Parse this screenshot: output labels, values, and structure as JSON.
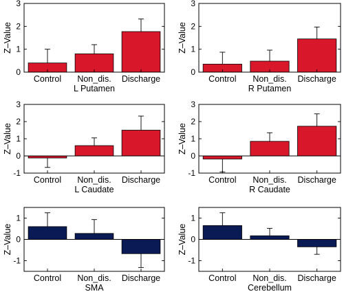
{
  "figure": {
    "title": "",
    "colors": {
      "red": "#d8172a",
      "navy": "#0a1a55",
      "axis": "#000000"
    }
  },
  "chart_data": [
    {
      "type": "bar",
      "title": "",
      "xlabel": "L Putamen",
      "ylabel": "Z–Value",
      "categories": [
        "Control",
        "Non_dis.",
        "Discharge"
      ],
      "values": [
        0.4,
        0.8,
        1.77
      ],
      "error": [
        0.6,
        0.4,
        0.55
      ],
      "ylim": [
        0,
        3
      ],
      "yticks": [
        0,
        1,
        2,
        3
      ],
      "color": "red"
    },
    {
      "type": "bar",
      "title": "",
      "xlabel": "R Putamen",
      "ylabel": "Z–Value",
      "categories": [
        "Control",
        "Non_dis.",
        "Discharge"
      ],
      "values": [
        0.35,
        0.48,
        1.45
      ],
      "error": [
        0.52,
        0.48,
        0.52
      ],
      "ylim": [
        0,
        3
      ],
      "yticks": [
        0,
        1,
        2,
        3
      ],
      "color": "red"
    },
    {
      "type": "bar",
      "title": "",
      "xlabel": "L Caudate",
      "ylabel": "Z–Value",
      "categories": [
        "Control",
        "Non_dis.",
        "Discharge"
      ],
      "values": [
        -0.12,
        0.6,
        1.5
      ],
      "error": [
        0.55,
        0.45,
        0.82
      ],
      "ylim": [
        -1,
        3
      ],
      "yticks": [
        -1,
        0,
        1,
        2,
        3
      ],
      "color": "red"
    },
    {
      "type": "bar",
      "title": "",
      "xlabel": "R Caudate",
      "ylabel": "Z–Value",
      "categories": [
        "Control",
        "Non_dis.",
        "Discharge"
      ],
      "values": [
        -0.18,
        0.85,
        1.73
      ],
      "error": [
        0.75,
        0.5,
        0.72
      ],
      "ylim": [
        -1,
        3
      ],
      "yticks": [
        -1,
        0,
        1,
        2,
        3
      ],
      "color": "red"
    },
    {
      "type": "bar",
      "title": "",
      "xlabel": "SMA",
      "ylabel": "Z–Value",
      "categories": [
        "Control",
        "Non_dis.",
        "Discharge"
      ],
      "values": [
        0.6,
        0.28,
        -0.67
      ],
      "error": [
        0.65,
        0.65,
        0.65
      ],
      "ylim": [
        -1.5,
        1.5
      ],
      "yticks": [
        -1,
        0,
        1
      ],
      "color": "navy"
    },
    {
      "type": "bar",
      "title": "",
      "xlabel": "Cerebellum",
      "ylabel": "Z–Value",
      "categories": [
        "Control",
        "Non_dis.",
        "Discharge"
      ],
      "values": [
        0.65,
        0.17,
        -0.35
      ],
      "error": [
        0.6,
        0.35,
        0.35
      ],
      "ylim": [
        -1.5,
        1.5
      ],
      "yticks": [
        -1,
        0,
        1
      ],
      "color": "navy"
    }
  ]
}
